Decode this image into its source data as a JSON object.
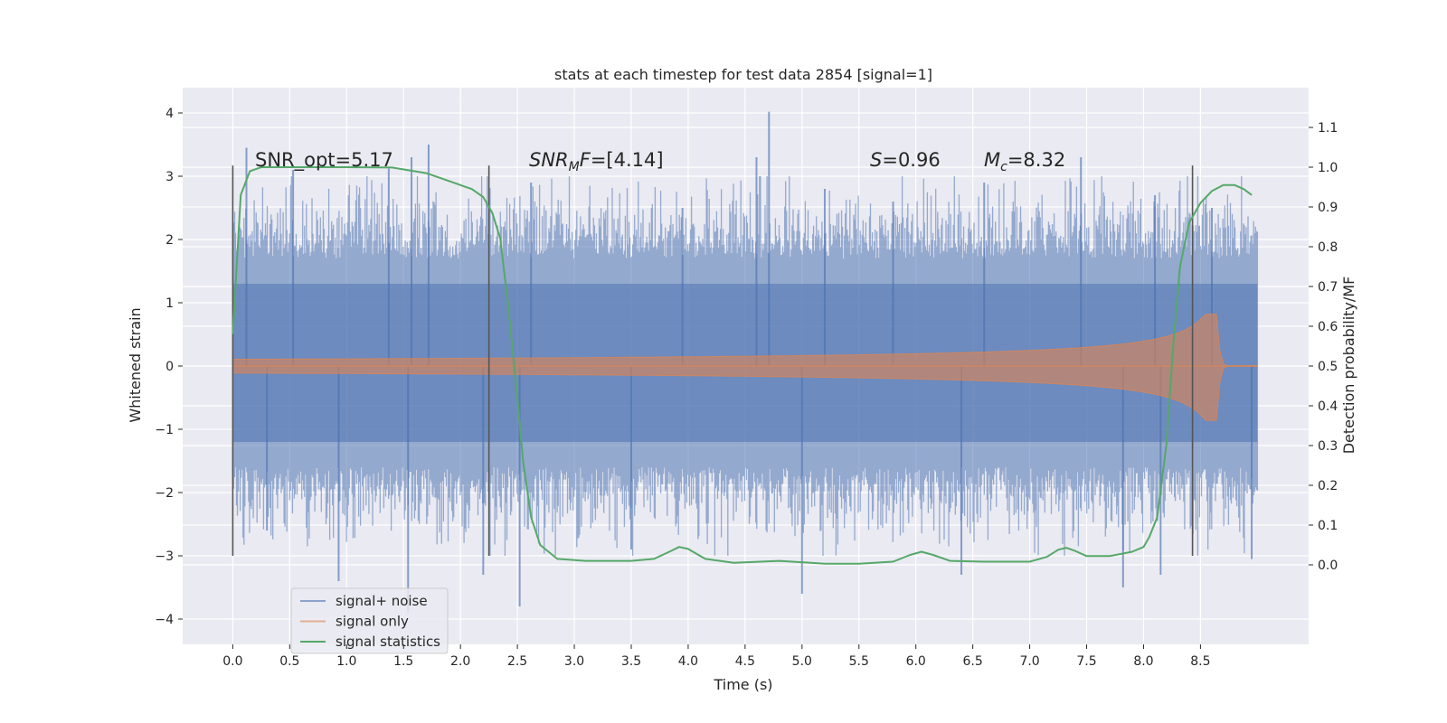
{
  "chart_data": {
    "type": "line",
    "title": "stats at each timestep for test data 2854 [signal=1]",
    "xlabel": "Time (s)",
    "ylabel": "Whitened strain",
    "y2label": "Detection probability/MF",
    "xlim": [
      -0.44,
      9.45
    ],
    "ylim": [
      -4.4,
      4.4
    ],
    "y2lim": [
      -0.2,
      1.2
    ],
    "x_ticks": [
      0.0,
      0.5,
      1.0,
      1.5,
      2.0,
      2.5,
      3.0,
      3.5,
      4.0,
      4.5,
      5.0,
      5.5,
      6.0,
      6.5,
      7.0,
      7.5,
      8.0,
      8.5
    ],
    "x_tick_labels": [
      "0.0",
      "0.5",
      "1.0",
      "1.5",
      "2.0",
      "2.5",
      "3.0",
      "3.5",
      "4.0",
      "4.5",
      "5.0",
      "5.5",
      "6.0",
      "6.5",
      "7.0",
      "7.5",
      "8.0",
      "8.5"
    ],
    "y_ticks": [
      4,
      3,
      2,
      1,
      0,
      -1,
      -2,
      -3,
      -4
    ],
    "y_tick_labels": [
      "4",
      "3",
      "2",
      "1",
      "0",
      "−1",
      "−2",
      "−3",
      "−4"
    ],
    "y2_ticks": [
      1.1,
      1.0,
      0.9,
      0.8,
      0.7,
      0.6,
      0.5,
      0.4,
      0.3,
      0.2,
      0.1,
      0.0
    ],
    "y2_tick_labels": [
      "1.1",
      "1.0",
      "0.9",
      "0.8",
      "0.7",
      "0.6",
      "0.5",
      "0.4",
      "0.3",
      "0.2",
      "0.1",
      "0.0"
    ],
    "grid": true,
    "legend_position": "lower-left",
    "annotations": {
      "snr_opt": "SNR_opt=5.17",
      "snr_mf_label": "SNR",
      "snr_mf_sub": "M",
      "snr_mf_f": "F",
      "snr_mf_value": "=[4.14]",
      "s_label": "S",
      "s_value": "=0.96",
      "mc_label": "M",
      "mc_sub": "c",
      "mc_value": "=8.32"
    },
    "vertical_lines": [
      0.0,
      2.25,
      8.43
    ],
    "vertical_line_range": [
      -3.0,
      3.17
    ],
    "series": [
      {
        "name": "signal+ noise",
        "color": "#4c72b0",
        "style": "noise-band",
        "t_range": [
          0.0,
          9.0
        ],
        "band_inner": [
          -1.2,
          1.3
        ],
        "spikes": [
          {
            "t": 0.12,
            "v": 3.45
          },
          {
            "t": 0.53,
            "v": 3.1
          },
          {
            "t": 1.37,
            "v": 3.12
          },
          {
            "t": 1.57,
            "v": 3.3
          },
          {
            "t": 1.72,
            "v": 3.5
          },
          {
            "t": 2.62,
            "v": 2.9
          },
          {
            "t": 3.95,
            "v": 2.5
          },
          {
            "t": 4.6,
            "v": 3.3
          },
          {
            "t": 4.71,
            "v": 4.02
          },
          {
            "t": 5.2,
            "v": 2.8
          },
          {
            "t": 5.8,
            "v": 2.6
          },
          {
            "t": 6.6,
            "v": 2.9
          },
          {
            "t": 7.45,
            "v": 3.3
          },
          {
            "t": 8.1,
            "v": 2.7
          },
          {
            "t": 8.6,
            "v": 2.5
          },
          {
            "t": 0.3,
            "v": -2.6
          },
          {
            "t": 0.93,
            "v": -3.4
          },
          {
            "t": 1.54,
            "v": -3.9
          },
          {
            "t": 2.2,
            "v": -3.3
          },
          {
            "t": 2.52,
            "v": -3.8
          },
          {
            "t": 3.5,
            "v": -2.9
          },
          {
            "t": 5.0,
            "v": -3.6
          },
          {
            "t": 6.4,
            "v": -3.3
          },
          {
            "t": 7.82,
            "v": -3.5
          },
          {
            "t": 8.15,
            "v": -3.3
          },
          {
            "t": 8.95,
            "v": -3.05
          }
        ]
      },
      {
        "name": "signal only",
        "color": "#dd8452",
        "style": "chirp-envelope",
        "t_start": 0.0,
        "t_merger": 8.65,
        "t_end": 9.0,
        "peak_amp": 0.82
      },
      {
        "name": "signal statistics",
        "color": "#55a868",
        "style": "line",
        "axis": "right",
        "x": [
          0.0,
          0.07,
          0.15,
          0.25,
          0.5,
          1.0,
          1.4,
          1.7,
          1.95,
          2.1,
          2.2,
          2.28,
          2.35,
          2.42,
          2.5,
          2.55,
          2.62,
          2.7,
          2.85,
          3.1,
          3.5,
          3.7,
          3.85,
          3.92,
          4.0,
          4.15,
          4.4,
          4.8,
          5.2,
          5.5,
          5.8,
          5.95,
          6.05,
          6.15,
          6.3,
          6.6,
          7.0,
          7.15,
          7.25,
          7.32,
          7.4,
          7.5,
          7.7,
          7.9,
          8.0,
          8.05,
          8.12,
          8.2,
          8.26,
          8.32,
          8.4,
          8.5,
          8.6,
          8.7,
          8.8,
          8.88,
          8.95
        ],
        "y": [
          0.58,
          0.93,
          0.99,
          1.0,
          1.0,
          1.0,
          0.999,
          0.985,
          0.96,
          0.945,
          0.925,
          0.885,
          0.82,
          0.65,
          0.42,
          0.26,
          0.12,
          0.05,
          0.015,
          0.01,
          0.01,
          0.015,
          0.035,
          0.045,
          0.04,
          0.015,
          0.005,
          0.01,
          0.003,
          0.003,
          0.008,
          0.025,
          0.033,
          0.025,
          0.01,
          0.008,
          0.008,
          0.02,
          0.038,
          0.043,
          0.035,
          0.022,
          0.022,
          0.033,
          0.045,
          0.07,
          0.12,
          0.3,
          0.55,
          0.75,
          0.86,
          0.91,
          0.94,
          0.955,
          0.955,
          0.945,
          0.93
        ]
      }
    ]
  }
}
